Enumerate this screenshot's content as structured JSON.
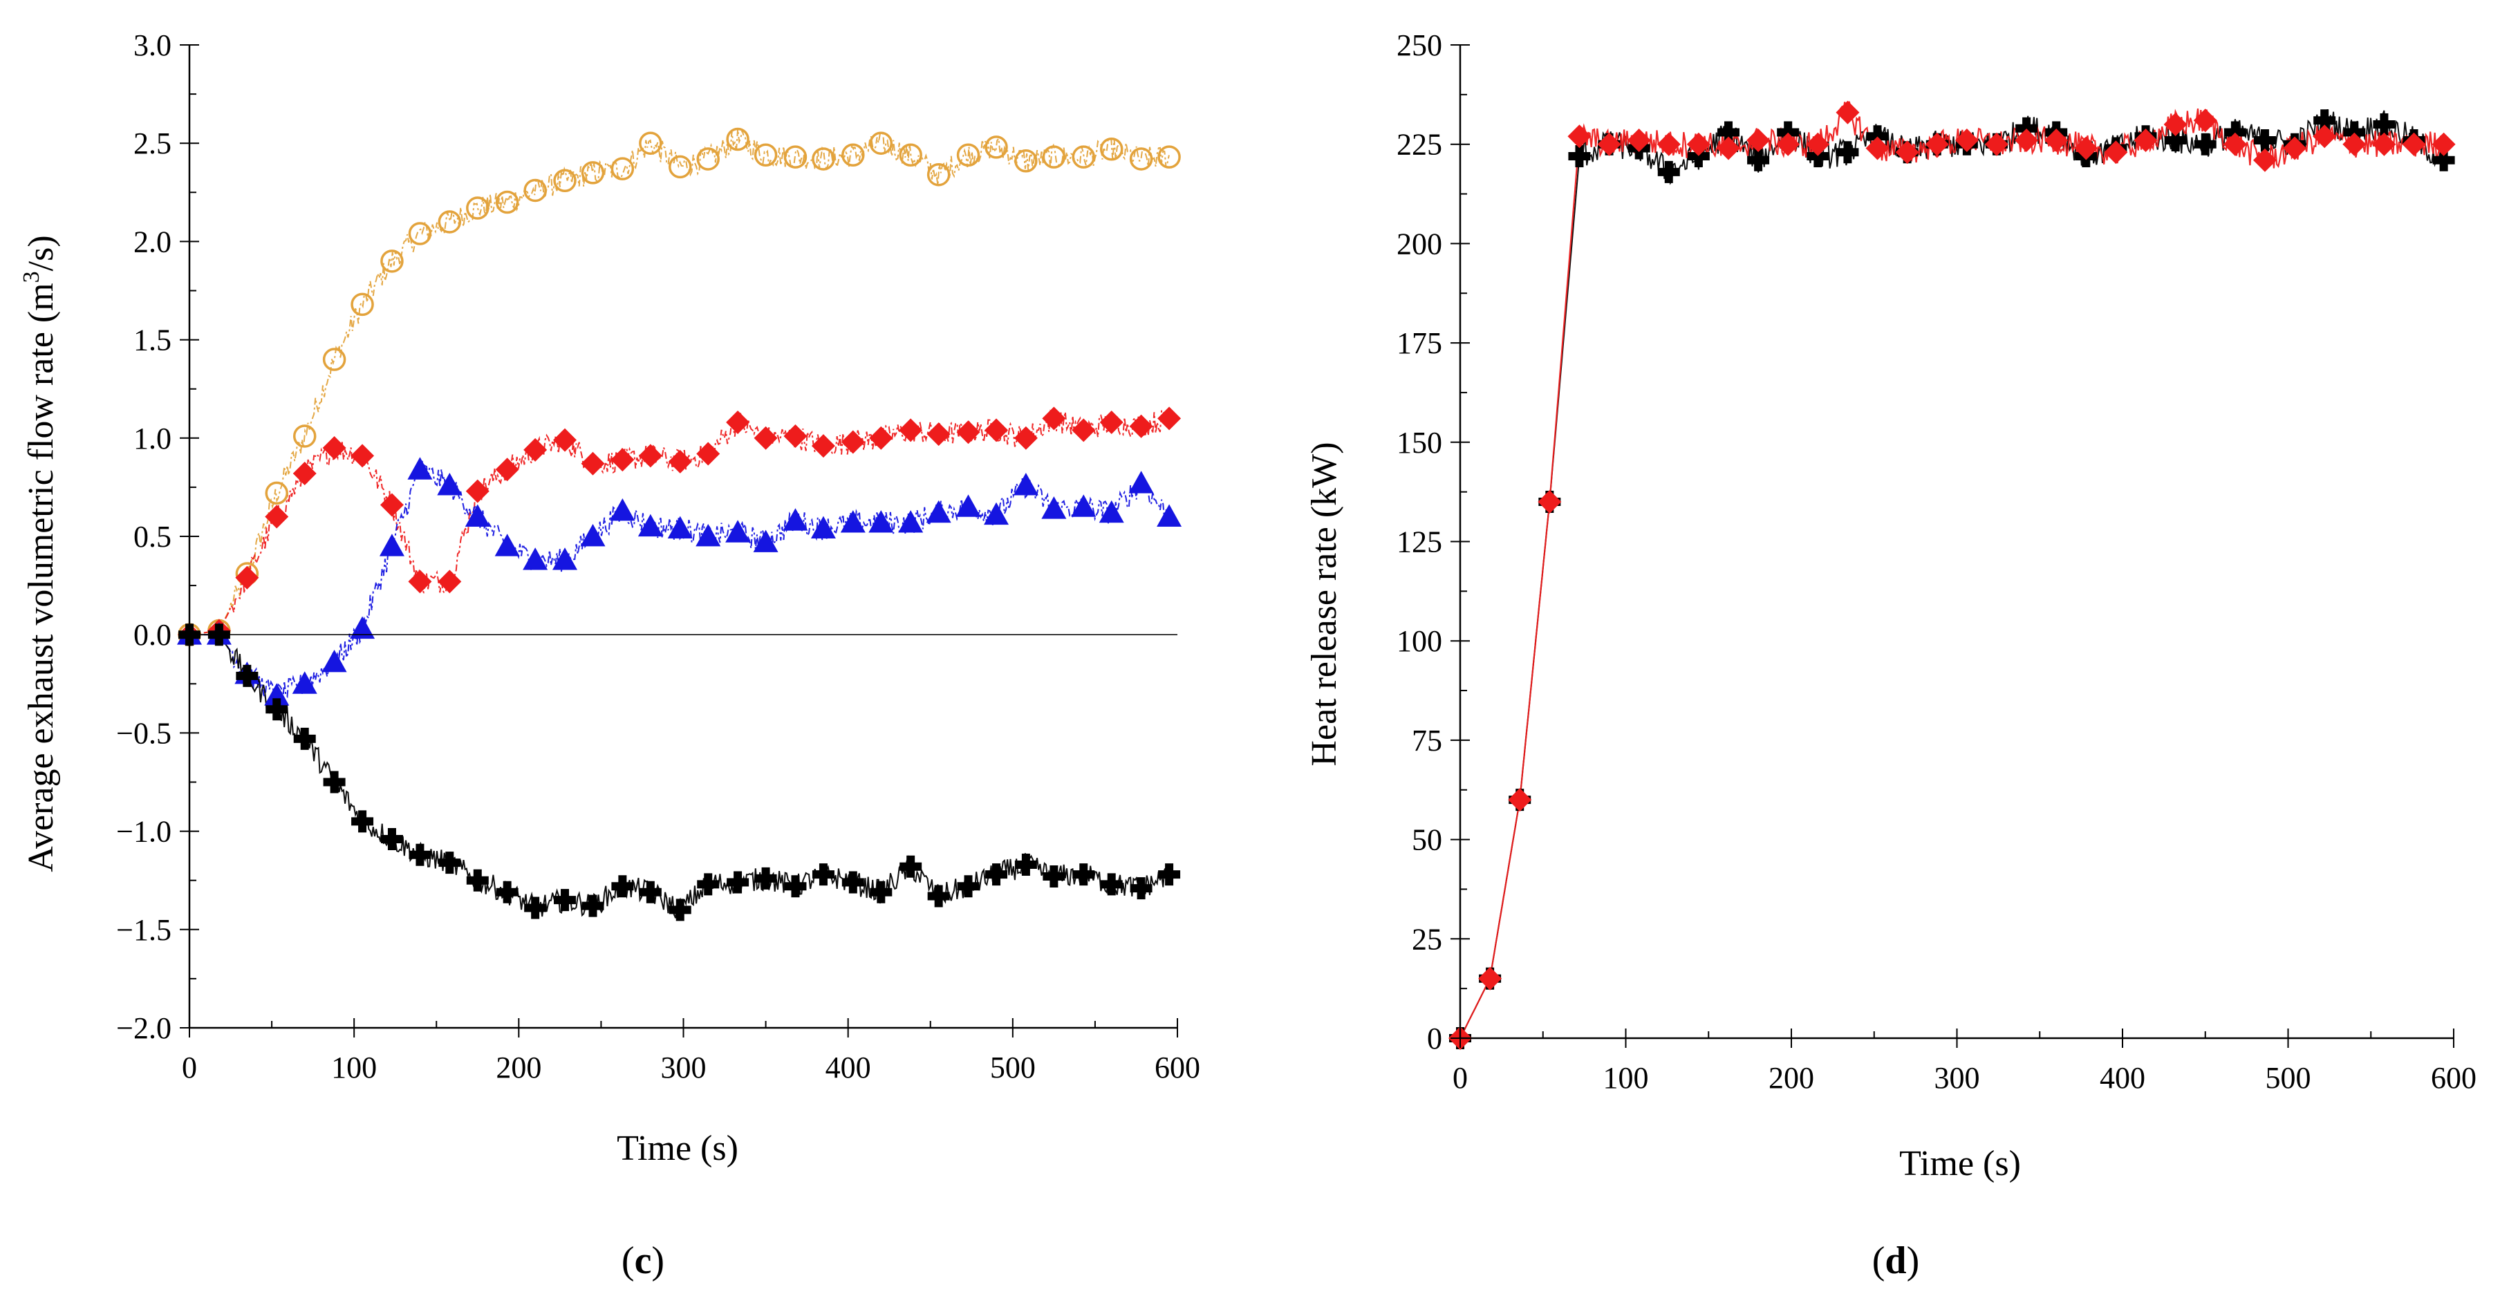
{
  "figure": {
    "panels": [
      {
        "label_open": "(",
        "label_letter": "c",
        "label_close": ")"
      },
      {
        "label_open": "(",
        "label_letter": "d",
        "label_close": ")"
      }
    ]
  },
  "chart_data": [
    {
      "type": "line",
      "panel": "c",
      "title": "",
      "xlabel": "Time (s)",
      "ylabel": "Average exhaust volumetric flow rate (m³/s)",
      "ylabel_parts": [
        "Average exhaust volumetric flow rate (m",
        "3",
        "/s)"
      ],
      "xlim": [
        0,
        600
      ],
      "ylim": [
        -2.0,
        3.0
      ],
      "xticks": [
        0,
        100,
        200,
        300,
        400,
        500,
        600
      ],
      "xtick_labels": [
        "0",
        "100",
        "200",
        "300",
        "400",
        "500",
        "600"
      ],
      "yticks": [
        -2.0,
        -1.5,
        -1.0,
        -0.5,
        0.0,
        0.5,
        1.0,
        1.5,
        2.0,
        2.5,
        3.0
      ],
      "ytick_labels": [
        "−2.0",
        "−1.5",
        "−1.0",
        "−0.5",
        "0.0",
        "0.5",
        "1.0",
        "1.5",
        "2.0",
        "2.5",
        "3.0"
      ],
      "series": [
        {
          "name": "orange-circles",
          "color": "#E3A33C",
          "marker": "circle-open",
          "x": [
            0,
            18,
            35,
            53,
            70,
            88,
            105,
            123,
            140,
            158,
            175,
            193,
            210,
            228,
            245,
            263,
            280,
            298,
            315,
            333,
            350,
            368,
            385,
            403,
            420,
            438,
            455,
            473,
            490,
            508,
            525,
            543,
            560,
            578,
            595
          ],
          "values": [
            0.0,
            0.02,
            0.31,
            0.72,
            1.01,
            1.4,
            1.68,
            1.9,
            2.04,
            2.1,
            2.17,
            2.2,
            2.26,
            2.31,
            2.35,
            2.37,
            2.5,
            2.38,
            2.42,
            2.52,
            2.44,
            2.43,
            2.42,
            2.44,
            2.5,
            2.44,
            2.34,
            2.44,
            2.48,
            2.41,
            2.43,
            2.43,
            2.47,
            2.42,
            2.43
          ]
        },
        {
          "name": "red-diamonds",
          "color": "#EE1C1C",
          "marker": "diamond",
          "x": [
            0,
            18,
            35,
            53,
            70,
            88,
            105,
            123,
            140,
            158,
            175,
            193,
            210,
            228,
            245,
            263,
            280,
            298,
            315,
            333,
            350,
            368,
            385,
            403,
            420,
            438,
            455,
            473,
            490,
            508,
            525,
            543,
            560,
            578,
            595
          ],
          "values": [
            0.0,
            0.02,
            0.29,
            0.6,
            0.82,
            0.95,
            0.91,
            0.66,
            0.27,
            0.27,
            0.73,
            0.84,
            0.94,
            0.99,
            0.87,
            0.89,
            0.91,
            0.88,
            0.92,
            1.08,
            1.0,
            1.01,
            0.96,
            0.98,
            1.0,
            1.04,
            1.02,
            1.03,
            1.04,
            1.0,
            1.1,
            1.04,
            1.08,
            1.06,
            1.1
          ]
        },
        {
          "name": "blue-triangles",
          "color": "#1515E0",
          "marker": "triangle",
          "x": [
            0,
            18,
            35,
            53,
            70,
            88,
            105,
            123,
            140,
            158,
            175,
            193,
            210,
            228,
            245,
            263,
            280,
            298,
            315,
            333,
            350,
            368,
            385,
            403,
            420,
            438,
            455,
            473,
            490,
            508,
            525,
            543,
            560,
            578,
            595
          ],
          "values": [
            0.0,
            0.0,
            -0.2,
            -0.31,
            -0.25,
            -0.14,
            0.03,
            0.45,
            0.84,
            0.76,
            0.6,
            0.45,
            0.38,
            0.38,
            0.5,
            0.63,
            0.55,
            0.54,
            0.5,
            0.52,
            0.47,
            0.58,
            0.54,
            0.57,
            0.57,
            0.57,
            0.62,
            0.65,
            0.61,
            0.76,
            0.64,
            0.65,
            0.62,
            0.77,
            0.6
          ]
        },
        {
          "name": "black-crosses",
          "color": "#000000",
          "marker": "plus",
          "x": [
            0,
            18,
            35,
            53,
            70,
            88,
            105,
            123,
            140,
            158,
            175,
            193,
            210,
            228,
            245,
            263,
            280,
            298,
            315,
            333,
            350,
            368,
            385,
            403,
            420,
            438,
            455,
            473,
            490,
            508,
            525,
            543,
            560,
            578,
            595
          ],
          "values": [
            0.0,
            0.0,
            -0.21,
            -0.38,
            -0.53,
            -0.75,
            -0.95,
            -1.04,
            -1.12,
            -1.16,
            -1.25,
            -1.31,
            -1.39,
            -1.35,
            -1.38,
            -1.28,
            -1.31,
            -1.4,
            -1.27,
            -1.26,
            -1.24,
            -1.28,
            -1.22,
            -1.26,
            -1.31,
            -1.18,
            -1.33,
            -1.28,
            -1.22,
            -1.17,
            -1.23,
            -1.22,
            -1.27,
            -1.29,
            -1.22
          ]
        }
      ]
    },
    {
      "type": "line",
      "panel": "d",
      "title": "",
      "xlabel": "Time (s)",
      "ylabel": "Heat release rate (kW)",
      "xlim": [
        0,
        600
      ],
      "ylim": [
        0,
        250
      ],
      "xticks": [
        0,
        100,
        200,
        300,
        400,
        500,
        600
      ],
      "xtick_labels": [
        "0",
        "100",
        "200",
        "300",
        "400",
        "500",
        "600"
      ],
      "yticks": [
        0,
        25,
        50,
        75,
        100,
        125,
        150,
        175,
        200,
        225,
        250
      ],
      "ytick_labels": [
        "0",
        "25",
        "50",
        "75",
        "100",
        "125",
        "150",
        "175",
        "200",
        "225",
        "250"
      ],
      "series": [
        {
          "name": "black-crosses",
          "color": "#000000",
          "marker": "plus",
          "x": [
            0,
            18,
            36,
            54,
            72,
            90,
            108,
            126,
            144,
            162,
            180,
            198,
            216,
            234,
            252,
            270,
            288,
            306,
            324,
            342,
            360,
            378,
            396,
            414,
            432,
            450,
            468,
            486,
            504,
            522,
            540,
            558,
            576,
            594
          ],
          "values": [
            0,
            15,
            60,
            135,
            222,
            225,
            224,
            218,
            222,
            228,
            221,
            228,
            222,
            223,
            227,
            223,
            225,
            225,
            225,
            229,
            228,
            222,
            224,
            227,
            226,
            225,
            228,
            226,
            225,
            231,
            228,
            230,
            226,
            221
          ]
        },
        {
          "name": "red-diamonds",
          "color": "#EE1C1C",
          "marker": "diamond",
          "x": [
            0,
            18,
            36,
            54,
            72,
            90,
            108,
            126,
            144,
            162,
            180,
            198,
            216,
            234,
            252,
            270,
            288,
            306,
            324,
            342,
            360,
            378,
            396,
            414,
            432,
            450,
            468,
            486,
            504,
            522,
            540,
            558,
            576,
            594
          ],
          "values": [
            0,
            15,
            60,
            135,
            227,
            225,
            226,
            225,
            225,
            224,
            226,
            225,
            225,
            233,
            224,
            223,
            225,
            226,
            225,
            226,
            226,
            224,
            223,
            226,
            230,
            231,
            225,
            221,
            224,
            227,
            225,
            225,
            225,
            225
          ]
        }
      ]
    }
  ]
}
